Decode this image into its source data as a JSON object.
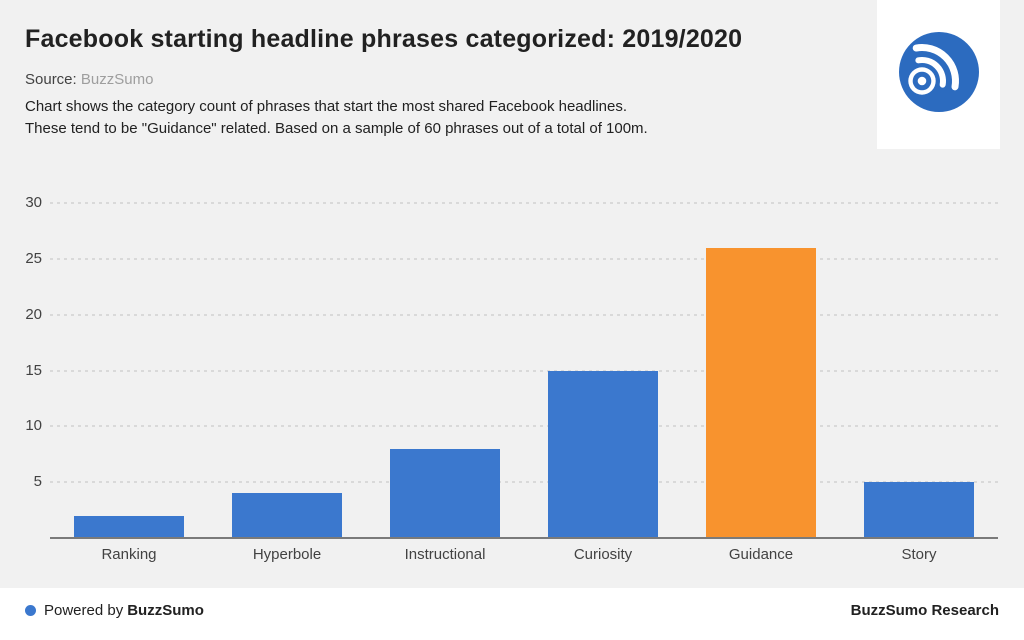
{
  "header": {
    "title": "Facebook starting headline phrases categorized: 2019/2020",
    "source_label": "Source:",
    "source_value": "BuzzSumo",
    "description_line1": "Chart shows the category count of phrases that start the most shared Facebook headlines.",
    "description_line2": "These tend to be \"Guidance\" related. Based on a sample of 60 phrases out of a total of 100m."
  },
  "chart_data": {
    "type": "bar",
    "categories": [
      "Ranking",
      "Hyperbole",
      "Instructional",
      "Curiosity",
      "Guidance",
      "Story"
    ],
    "values": [
      2,
      4,
      8,
      15,
      26,
      5
    ],
    "bar_colors": [
      "#3B78CE",
      "#3B78CE",
      "#3B78CE",
      "#3B78CE",
      "#F8932E",
      "#3B78CE"
    ],
    "highlight_category": "Guidance",
    "title": "Facebook starting headline phrases categorized: 2019/2020",
    "xlabel": "",
    "ylabel": "",
    "ylim": [
      0,
      30
    ],
    "yticks": [
      5,
      10,
      15,
      20,
      25,
      30
    ],
    "grid": "horizontal-dotted",
    "legend": "none"
  },
  "footer": {
    "powered_by": "Powered by",
    "powered_brand": "BuzzSumo",
    "right_text": "BuzzSumo Research"
  },
  "colors": {
    "background": "#F1F1F1",
    "bar_blue": "#3B78CE",
    "bar_orange": "#F8932E",
    "logo_circle": "#2C6BBF",
    "footer_dot": "#3B78CE",
    "footer_background": "#FFFFFF",
    "gridline": "#D9D9D9",
    "axis_line": "#7A7A7A"
  }
}
